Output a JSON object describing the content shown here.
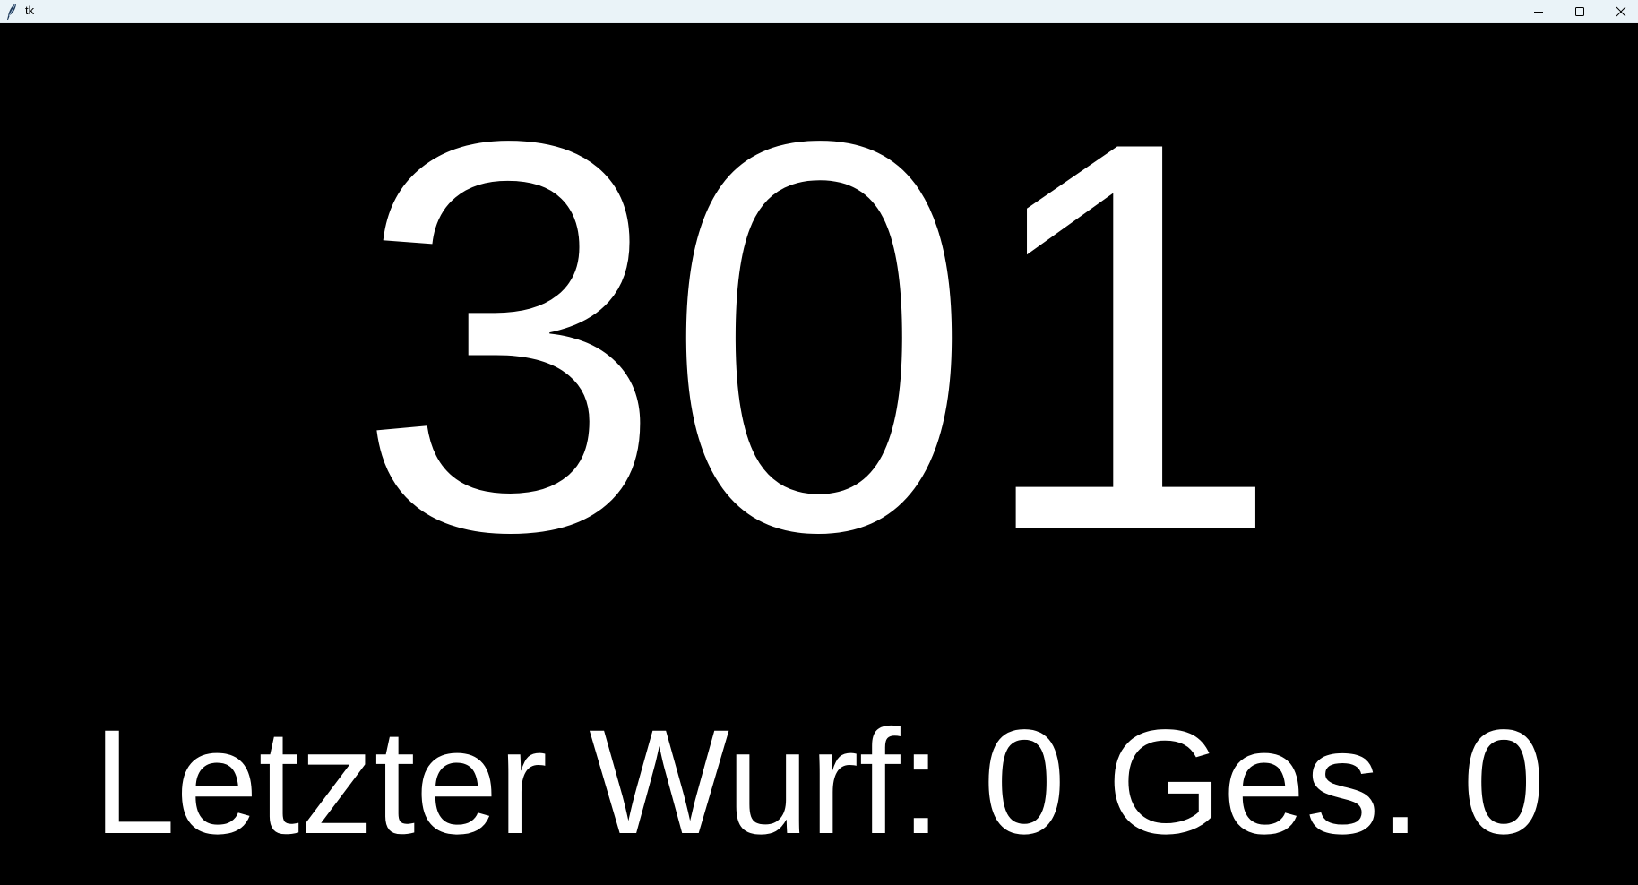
{
  "window": {
    "title": "tk",
    "icon": "tk-feather-icon",
    "controls": {
      "minimize_icon": "minimize-icon",
      "maximize_icon": "maximize-icon",
      "close_icon": "close-icon"
    }
  },
  "colors": {
    "background": "#000000",
    "foreground": "#ffffff",
    "titlebar": "#eaf3f8"
  },
  "game": {
    "score": "301",
    "status_line": "Letzter Wurf: 0 Ges. 0"
  }
}
